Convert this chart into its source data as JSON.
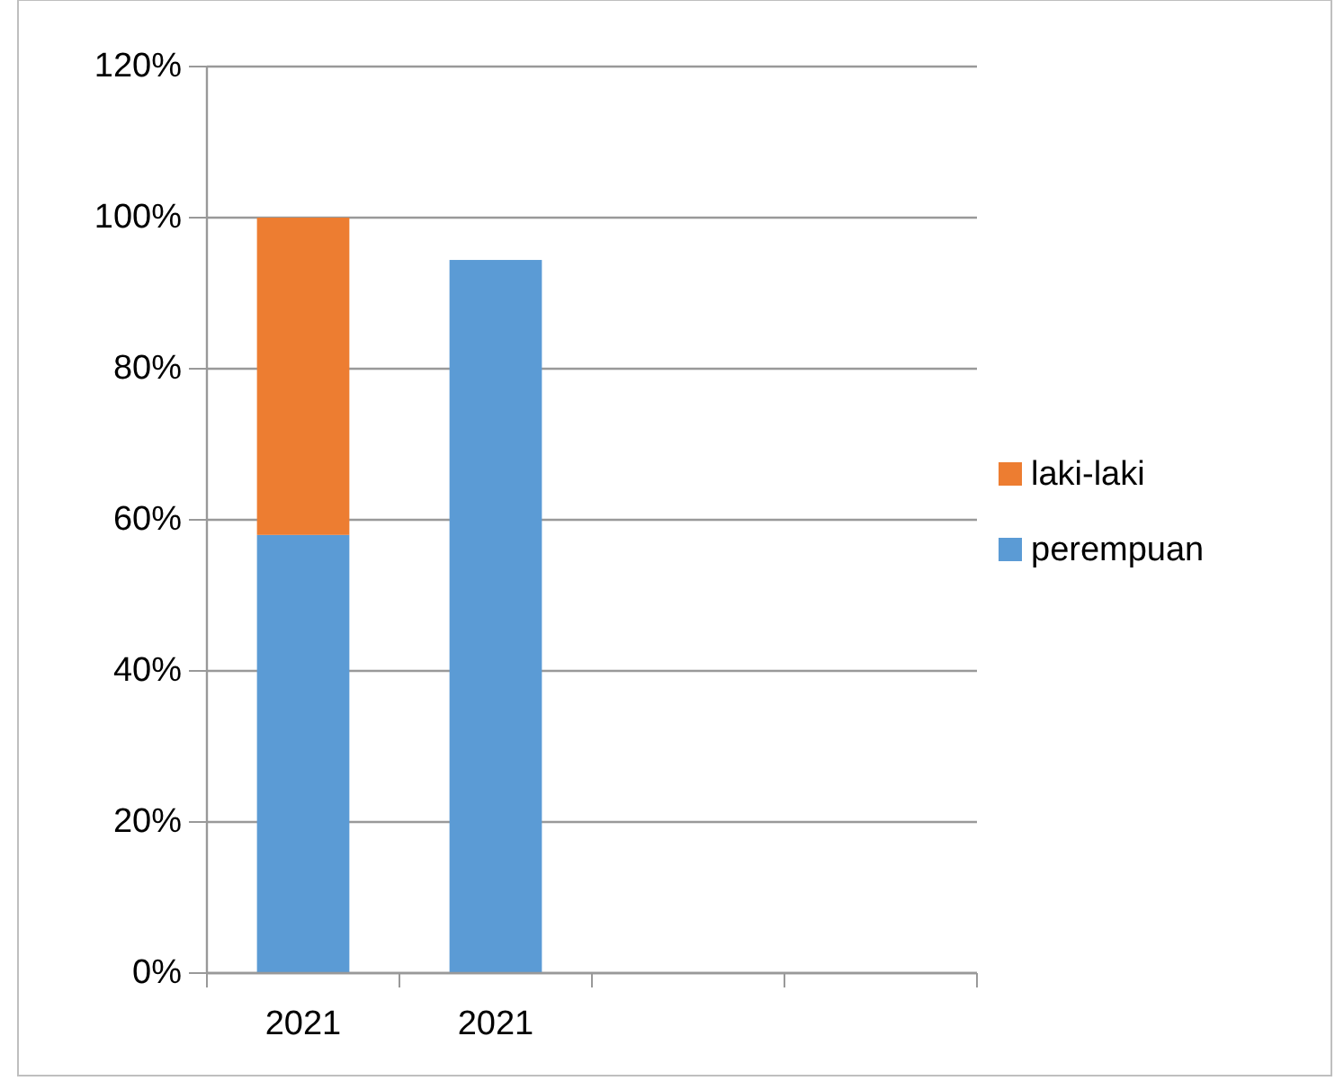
{
  "chart_data": {
    "type": "bar",
    "stacked": true,
    "categories": [
      "2021",
      "2021",
      null,
      null
    ],
    "series": [
      {
        "name": "perempuan",
        "color": "#5b9bd5",
        "values": [
          58,
          94.4,
          null,
          null
        ]
      },
      {
        "name": "laki-laki",
        "color": "#ed7d31",
        "values": [
          42,
          null,
          null,
          null
        ]
      }
    ],
    "ylim": [
      0,
      120
    ],
    "yticks": [
      {
        "value": 0,
        "label": "0%"
      },
      {
        "value": 20,
        "label": "20%"
      },
      {
        "value": 40,
        "label": "40%"
      },
      {
        "value": 60,
        "label": "60%"
      },
      {
        "value": 80,
        "label": "80%"
      },
      {
        "value": 100,
        "label": "100%"
      },
      {
        "value": 120,
        "label": "120%"
      }
    ],
    "grid": "y",
    "legend": "right"
  }
}
